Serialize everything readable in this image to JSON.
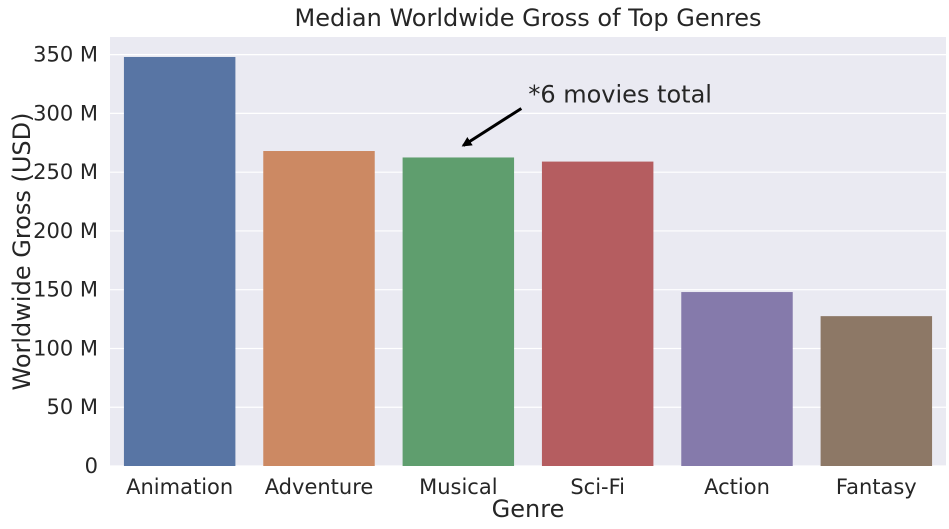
{
  "chart_data": {
    "type": "bar",
    "title": "Median Worldwide Gross of Top Genres",
    "xlabel": "Genre",
    "ylabel": "Worldwide Gross (USD)",
    "categories": [
      "Animation",
      "Adventure",
      "Musical",
      "Sci-Fi",
      "Action",
      "Fantasy"
    ],
    "values": [
      348000000,
      268000000,
      262500000,
      259000000,
      148000000,
      127500000
    ],
    "colors": [
      "#5875a4",
      "#cc8963",
      "#5f9e6e",
      "#b55d60",
      "#857aab",
      "#8d7866"
    ],
    "ylim": [
      0,
      365000000
    ],
    "yticks": [
      0,
      50000000,
      100000000,
      150000000,
      200000000,
      250000000,
      300000000,
      350000000
    ],
    "ytick_labels": [
      "0",
      "50 M",
      "100 M",
      "150 M",
      "200 M",
      "250 M",
      "300 M",
      "350 M"
    ],
    "grid": true,
    "background": "#eaeaf2",
    "annotation": {
      "text": "*6 movies total",
      "target_category": "Musical",
      "target_value": 262500000
    }
  }
}
